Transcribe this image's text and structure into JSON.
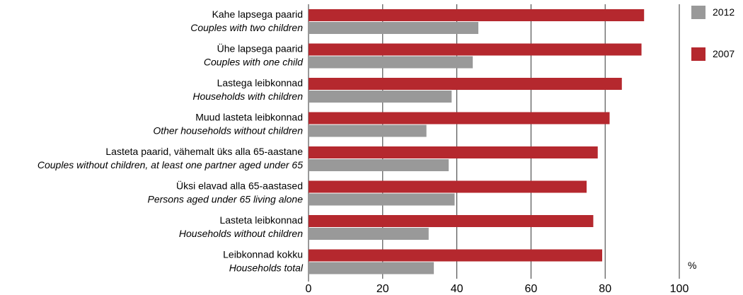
{
  "chart_data": {
    "type": "bar",
    "orientation": "horizontal",
    "categories": [
      {
        "et": "Kahe lapsega paarid",
        "en": "Couples with two children"
      },
      {
        "et": "Ühe lapsega paarid",
        "en": "Couples with one child"
      },
      {
        "et": "Lastega leibkonnad",
        "en": "Households with children"
      },
      {
        "et": "Muud lasteta leibkonnad",
        "en": "Other households without children"
      },
      {
        "et": "Lasteta paarid, vähemalt üks alla 65-aastane",
        "en": "Couples without children, at least one partner aged under 65"
      },
      {
        "et": "Üksi elavad alla 65-aastased",
        "en": "Persons aged under 65 living alone"
      },
      {
        "et": "Lasteta leibkonnad",
        "en": "Households without children"
      },
      {
        "et": "Leibkonnad kokku",
        "en": "Households total"
      }
    ],
    "series": [
      {
        "name": "2007",
        "color": "#b5282e",
        "values": [
          90.5,
          89.8,
          84.5,
          81.2,
          78.0,
          75.0,
          76.8,
          79.2
        ]
      },
      {
        "name": "2012",
        "color": "#999999",
        "values": [
          45.8,
          44.3,
          38.6,
          31.8,
          37.8,
          39.4,
          32.4,
          33.8
        ]
      }
    ],
    "legend": {
      "placement": "right",
      "order": [
        "2012",
        "2007"
      ]
    },
    "xlim": [
      0,
      100
    ],
    "xticks": [
      0,
      20,
      40,
      60,
      80,
      100
    ],
    "unit_label": "%",
    "grid": true,
    "title": "",
    "xlabel": "",
    "ylabel": ""
  }
}
